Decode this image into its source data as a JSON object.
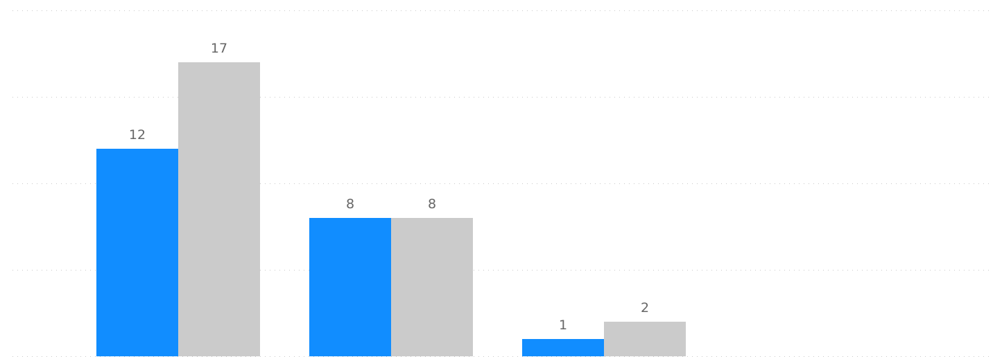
{
  "chart_data": {
    "type": "bar",
    "categories": [
      "",
      "",
      ""
    ],
    "series": [
      {
        "values": [
          12,
          8,
          1
        ],
        "color": "#118DFF"
      },
      {
        "values": [
          17,
          8,
          2
        ],
        "color": "#CBCBCB"
      }
    ],
    "ylim": [
      0,
      20
    ],
    "grid": true,
    "gridline_values": [
      0,
      5,
      10,
      15,
      20
    ],
    "data_labels": true,
    "legend": "none",
    "title": "",
    "xlabel": "",
    "ylabel": ""
  }
}
